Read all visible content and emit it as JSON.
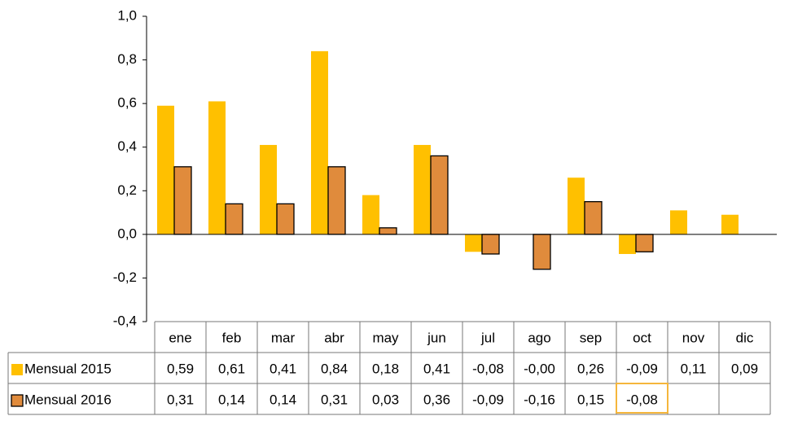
{
  "chart_data": {
    "type": "bar",
    "categories": [
      "ene",
      "feb",
      "mar",
      "abr",
      "may",
      "jun",
      "jul",
      "ago",
      "sep",
      "oct",
      "nov",
      "dic"
    ],
    "series": [
      {
        "name": "Mensual 2015",
        "color": "#ffc000",
        "values": [
          0.59,
          0.61,
          0.41,
          0.84,
          0.18,
          0.41,
          -0.08,
          -0.0,
          0.26,
          -0.09,
          0.11,
          0.09
        ],
        "value_labels": [
          "0,59",
          "0,61",
          "0,41",
          "0,84",
          "0,18",
          "0,41",
          "-0,08",
          "-0,00",
          "0,26",
          "-0,09",
          "0,11",
          "0,09"
        ]
      },
      {
        "name": "Mensual 2016",
        "color": "#e08b3c",
        "values": [
          0.31,
          0.14,
          0.14,
          0.31,
          0.03,
          0.36,
          -0.09,
          -0.16,
          0.15,
          -0.08,
          null,
          null
        ],
        "value_labels": [
          "0,31",
          "0,14",
          "0,14",
          "0,31",
          "0,03",
          "0,36",
          "-0,09",
          "-0,16",
          "0,15",
          "-0,08",
          null,
          null
        ]
      }
    ],
    "ylim": [
      -0.4,
      1.0
    ],
    "yticks": [
      {
        "value": -0.4,
        "label": "-0,4"
      },
      {
        "value": -0.2,
        "label": "-0,2"
      },
      {
        "value": 0,
        "label": "0,0"
      },
      {
        "value": 0.2,
        "label": "0,2"
      },
      {
        "value": 0.4,
        "label": "0,4"
      },
      {
        "value": 0.6,
        "label": "0,6"
      },
      {
        "value": 0.8,
        "label": "0,8"
      },
      {
        "value": 1.0,
        "label": "1,0"
      }
    ],
    "data_table": true
  }
}
